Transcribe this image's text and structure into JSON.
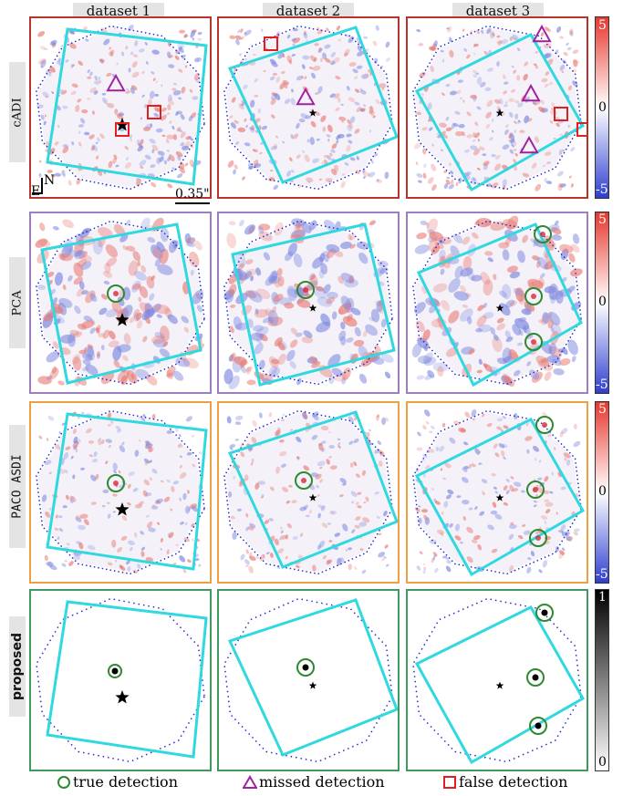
{
  "columns": [
    "dataset 1",
    "dataset 2",
    "dataset 3"
  ],
  "rows": [
    "cADI",
    "PCA",
    "PACO ASDI",
    "proposed"
  ],
  "scale_bar": "0.35\"",
  "compass": {
    "north": "N",
    "east": "E"
  },
  "colorbars": {
    "snr": {
      "max": "5",
      "mid": "0",
      "min": "-5"
    },
    "prob": {
      "max": "1",
      "min": "0"
    }
  },
  "legend": {
    "true": "true detection",
    "missed": "missed detection",
    "false": "false detection"
  },
  "colors": {
    "cadi_border": "#b8332c",
    "pca_border": "#9b7fbf",
    "paco_border": "#f0a040",
    "proposed_border": "#3f9a5e",
    "fov": "#30d8e0",
    "true": "#2f8a2f",
    "missed": "#a020a0",
    "false": "#e02020"
  }
}
